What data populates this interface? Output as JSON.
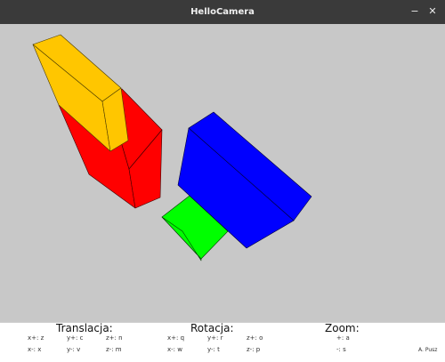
{
  "window": {
    "title": "HelloCamera",
    "minimize_glyph": "−",
    "close_glyph": "✕"
  },
  "scene": {
    "background": "#c8c8c8",
    "boxes": [
      {
        "name": "yellow-box",
        "color": "#ffc600"
      },
      {
        "name": "red-box",
        "color": "#ff0000"
      },
      {
        "name": "blue-box",
        "color": "#0000ff"
      },
      {
        "name": "green-box",
        "color": "#00ff00"
      }
    ]
  },
  "help": {
    "translation": {
      "heading": "Translacja:",
      "keys": [
        "x+: z",
        "y+: c",
        "z+: n",
        "x-: x",
        "y-: v",
        "z-: m"
      ]
    },
    "rotation": {
      "heading": "Rotacja:",
      "keys": [
        "x+: q",
        "y+: r",
        "z+: o",
        "x-: w",
        "y-: t",
        "z-: p"
      ]
    },
    "zoom": {
      "heading": "Zoom:",
      "keys": [
        "+: a",
        "-: s"
      ]
    },
    "author": "A. Pusz"
  }
}
